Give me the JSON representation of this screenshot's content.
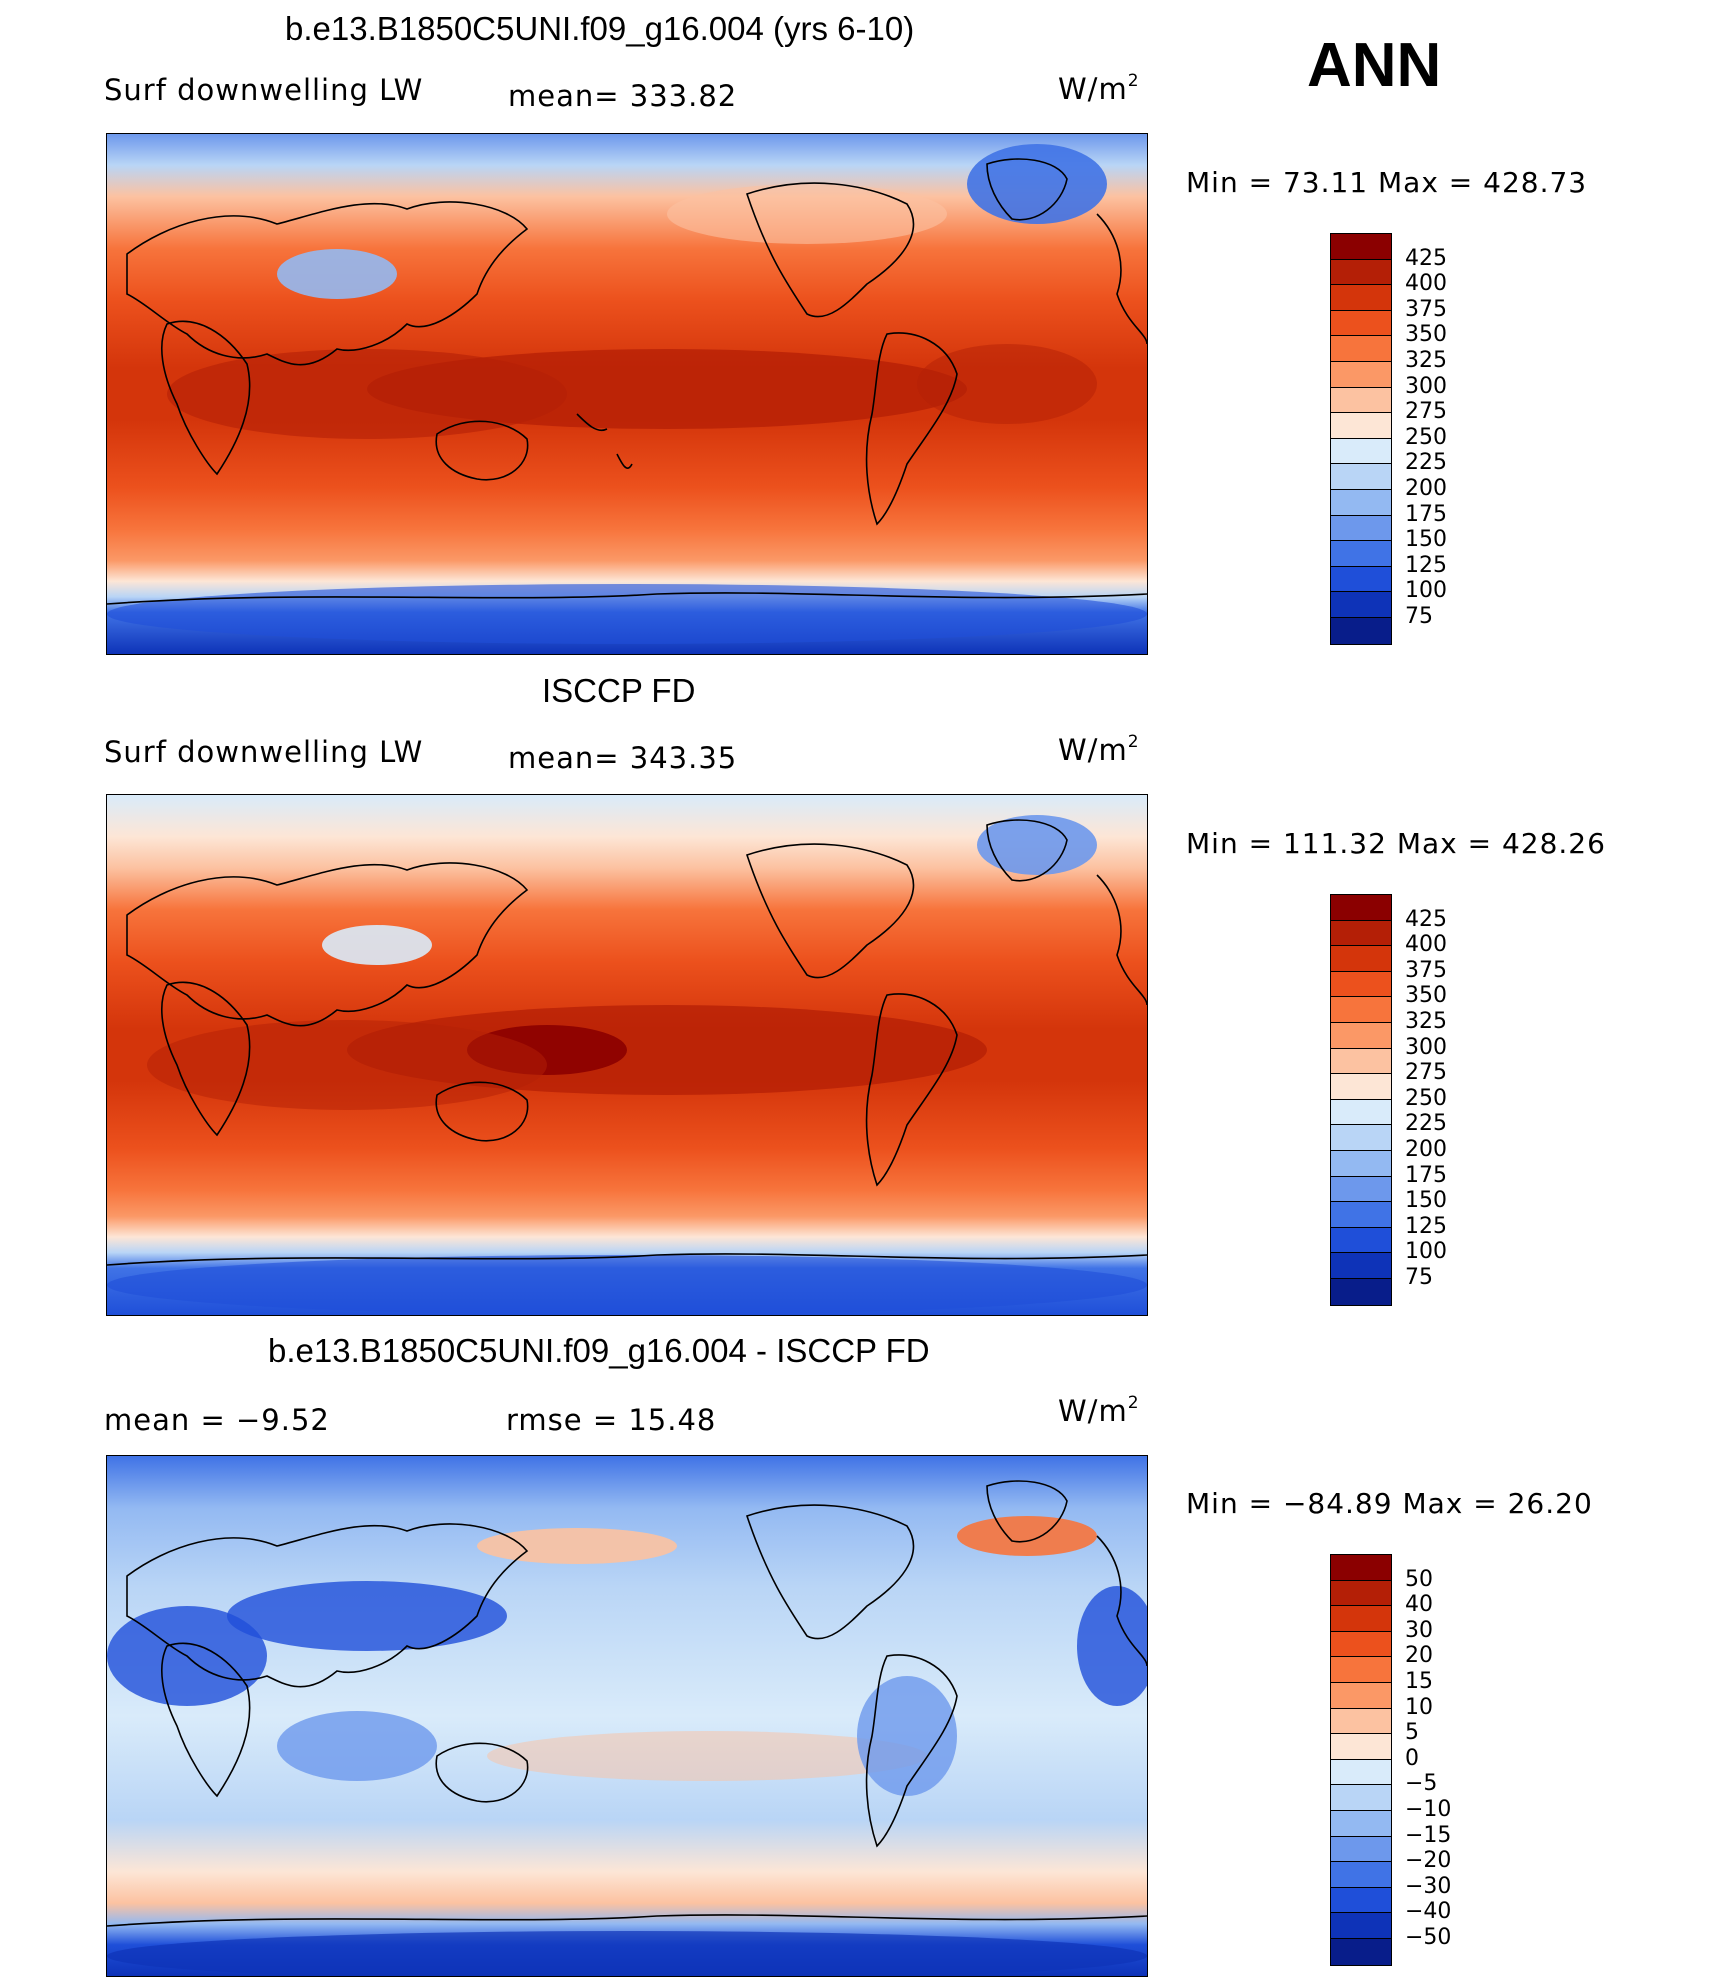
{
  "header": {
    "ann": "ANN"
  },
  "panels": [
    {
      "title": "b.e13.B1850C5UNI.f09_g16.004 (yrs 6-10)",
      "left": "Surf  downwelling  LW",
      "center": "mean=  333.82",
      "units_base": "W/m",
      "units_sup": "2",
      "minmax": "Min  =    73.11  Max  =  428.73",
      "colorbar": {
        "labels": [
          "425",
          "400",
          "375",
          "350",
          "325",
          "300",
          "275",
          "250",
          "225",
          "200",
          "175",
          "150",
          "125",
          "100",
          "75"
        ],
        "colors": [
          "#8b0000",
          "#b41f06",
          "#d4350b",
          "#ec511d",
          "#f7743c",
          "#fb9866",
          "#fcc2a1",
          "#fde6d6",
          "#d9ebfa",
          "#b9d5f6",
          "#93b9f2",
          "#6d98ec",
          "#4073e6",
          "#1f4fd9",
          "#0e33b8",
          "#081d8a"
        ]
      }
    },
    {
      "title": "ISCCP FD",
      "left": "Surf  downwelling  LW",
      "center": "mean=  343.35",
      "units_base": "W/m",
      "units_sup": "2",
      "minmax": "Min  =  111.32  Max  =  428.26",
      "colorbar": {
        "labels": [
          "425",
          "400",
          "375",
          "350",
          "325",
          "300",
          "275",
          "250",
          "225",
          "200",
          "175",
          "150",
          "125",
          "100",
          "75"
        ],
        "colors": [
          "#8b0000",
          "#b41f06",
          "#d4350b",
          "#ec511d",
          "#f7743c",
          "#fb9866",
          "#fcc2a1",
          "#fde6d6",
          "#d9ebfa",
          "#b9d5f6",
          "#93b9f2",
          "#6d98ec",
          "#4073e6",
          "#1f4fd9",
          "#0e33b8",
          "#081d8a"
        ]
      }
    },
    {
      "title": "b.e13.B1850C5UNI.f09_g16.004 - ISCCP FD",
      "left": "mean  =    −9.52",
      "center": "rmse  =    15.48",
      "units_base": "W/m",
      "units_sup": "2",
      "minmax": "Min  =  −84.89  Max  =    26.20",
      "colorbar": {
        "labels": [
          "50",
          "40",
          "30",
          "20",
          "15",
          "10",
          "5",
          "0",
          "−5",
          "−10",
          "−15",
          "−20",
          "−30",
          "−40",
          "−50"
        ],
        "colors": [
          "#8b0000",
          "#b41f06",
          "#d4350b",
          "#ec511d",
          "#f7743c",
          "#fb9866",
          "#fcc2a1",
          "#fde6d6",
          "#d9ebfa",
          "#b9d5f6",
          "#93b9f2",
          "#6d98ec",
          "#4073e6",
          "#1f4fd9",
          "#0e33b8",
          "#081d8a"
        ]
      }
    }
  ]
}
